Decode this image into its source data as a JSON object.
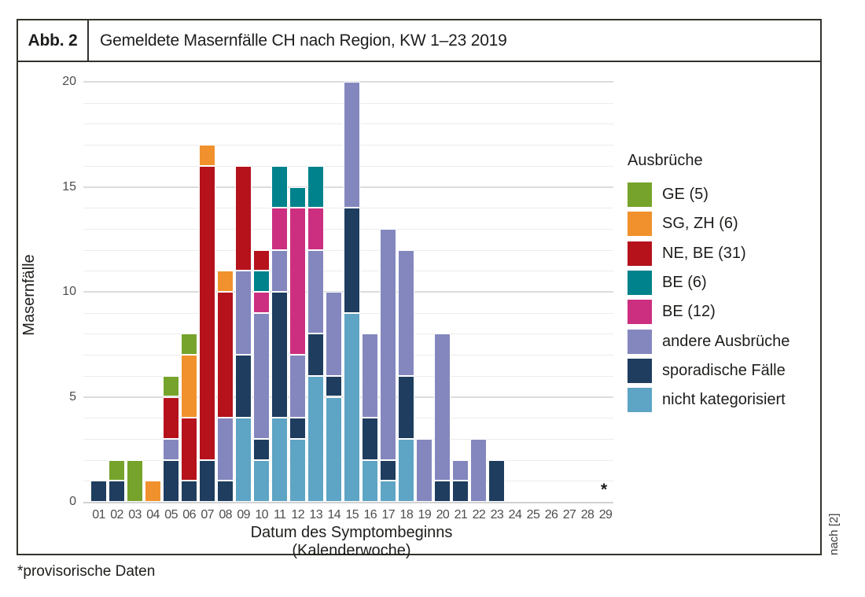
{
  "figure": {
    "label": "Abb. 2",
    "title": "Gemeldete Masernfälle CH nach Region, KW 1–23 2019"
  },
  "footnote": "*provisorische Daten",
  "source_note": "nach [2]",
  "chart_data": {
    "type": "bar",
    "stacked": true,
    "stack_order": "series listed top-of-legend first; stacked bottom-up in reverse order",
    "title": "Gemeldete Masernfälle CH nach Region, KW 1–23 2019",
    "xlabel": "Datum des Symptombeginns (Kalenderwoche)",
    "ylabel": "Masernfälle",
    "ylim": [
      0,
      20
    ],
    "yticks": [
      0,
      5,
      10,
      15,
      20
    ],
    "grid": {
      "minor_every": 1,
      "major_every": 5,
      "visible": true
    },
    "legend_title": "Ausbrüche",
    "legend_position": "right",
    "categories": [
      "01",
      "02",
      "03",
      "04",
      "05",
      "06",
      "07",
      "08",
      "09",
      "10",
      "11",
      "12",
      "13",
      "14",
      "15",
      "16",
      "17",
      "18",
      "19",
      "20",
      "21",
      "22",
      "23",
      "24",
      "25",
      "26",
      "27",
      "28",
      "29"
    ],
    "series": [
      {
        "name": "GE (5)",
        "color": "#76A32B",
        "values": [
          0,
          1,
          2,
          0,
          1,
          1,
          0,
          0,
          0,
          0,
          0,
          0,
          0,
          0,
          0,
          0,
          0,
          0,
          0,
          0,
          0,
          0,
          0,
          0,
          0,
          0,
          0,
          0,
          0
        ]
      },
      {
        "name": "SG, ZH (6)",
        "color": "#F0912D",
        "values": [
          0,
          0,
          0,
          1,
          0,
          3,
          1,
          1,
          0,
          0,
          0,
          0,
          0,
          0,
          0,
          0,
          0,
          0,
          0,
          0,
          0,
          0,
          0,
          0,
          0,
          0,
          0,
          0,
          0
        ]
      },
      {
        "name": "NE, BE (31)",
        "color": "#B5121C",
        "values": [
          0,
          0,
          0,
          0,
          2,
          3,
          14,
          6,
          5,
          1,
          0,
          0,
          0,
          0,
          0,
          0,
          0,
          0,
          0,
          0,
          0,
          0,
          0,
          0,
          0,
          0,
          0,
          0,
          0
        ]
      },
      {
        "name": "BE (6)",
        "color": "#00828C",
        "values": [
          0,
          0,
          0,
          0,
          0,
          0,
          0,
          0,
          0,
          1,
          2,
          1,
          2,
          0,
          0,
          0,
          0,
          0,
          0,
          0,
          0,
          0,
          0,
          0,
          0,
          0,
          0,
          0,
          0
        ]
      },
      {
        "name": "BE (12)",
        "color": "#CC2F80",
        "values": [
          0,
          0,
          0,
          0,
          0,
          0,
          0,
          0,
          0,
          1,
          2,
          7,
          2,
          0,
          0,
          0,
          0,
          0,
          0,
          0,
          0,
          0,
          0,
          0,
          0,
          0,
          0,
          0,
          0
        ]
      },
      {
        "name": "andere Ausbrüche",
        "color": "#8487BE",
        "values": [
          0,
          0,
          0,
          0,
          1,
          0,
          0,
          3,
          4,
          6,
          2,
          3,
          4,
          4,
          6,
          4,
          11,
          6,
          3,
          7,
          1,
          3,
          0,
          0,
          0,
          0,
          0,
          0,
          0
        ]
      },
      {
        "name": "sporadische Fälle",
        "color": "#1E3D5F",
        "values": [
          1,
          1,
          0,
          0,
          2,
          1,
          2,
          1,
          3,
          1,
          6,
          1,
          2,
          1,
          5,
          2,
          1,
          3,
          0,
          1,
          1,
          0,
          2,
          0,
          0,
          0,
          0,
          0,
          0
        ]
      },
      {
        "name": "nicht kategorisiert",
        "color": "#5EA4C4",
        "values": [
          0,
          0,
          0,
          0,
          0,
          0,
          0,
          0,
          4,
          2,
          4,
          3,
          6,
          5,
          9,
          2,
          1,
          3,
          0,
          0,
          0,
          0,
          0,
          0,
          0,
          0,
          0,
          0,
          0
        ]
      }
    ],
    "annotation": {
      "text": "*",
      "category": "29",
      "y": 0.6,
      "meaning": "provisorische Daten"
    }
  }
}
